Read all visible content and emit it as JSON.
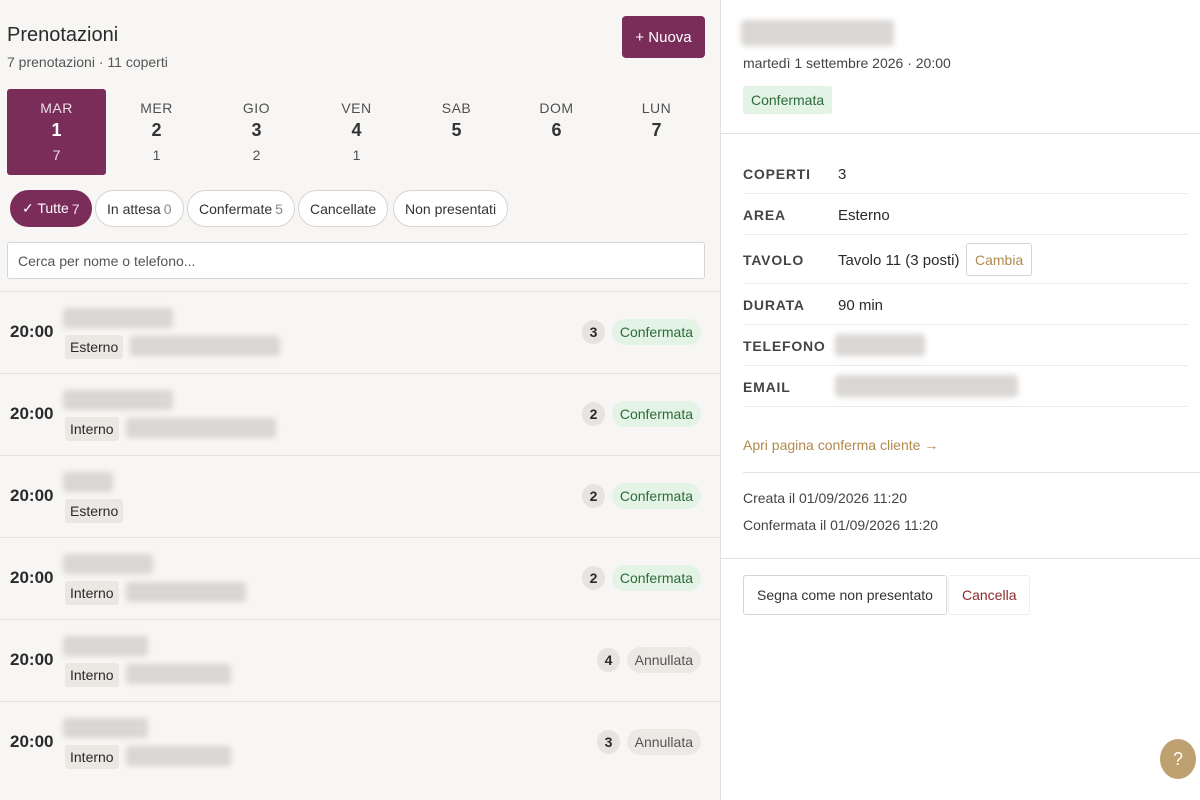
{
  "header": {
    "title": "Prenotazioni",
    "subtitle": "7 prenotazioni · 11 coperti",
    "new_button": "+ Nuova"
  },
  "days": [
    {
      "dow": "MAR",
      "day": 1,
      "count": 7,
      "selected": true
    },
    {
      "dow": "MER",
      "day": 2,
      "count": 1
    },
    {
      "dow": "GIO",
      "day": 3,
      "count": 2
    },
    {
      "dow": "VEN",
      "day": 4,
      "count": 1
    },
    {
      "dow": "SAB",
      "day": 5
    },
    {
      "dow": "DOM",
      "day": 6
    },
    {
      "dow": "LUN",
      "day": 7
    }
  ],
  "filters": [
    {
      "label": "✓ Tutte",
      "count": 7,
      "selected": true
    },
    {
      "label": "In attesa",
      "count": 0
    },
    {
      "label": "Confermate",
      "count": 5
    },
    {
      "label": "Cancellate"
    },
    {
      "label": "Non presentati"
    }
  ],
  "search": {
    "placeholder": "Cerca per nome o telefono..."
  },
  "reservations": [
    {
      "time": "20:00",
      "area": "Esterno",
      "covers": 3,
      "status": "Confermata"
    },
    {
      "time": "20:00",
      "area": "Interno",
      "covers": 2,
      "status": "Confermata"
    },
    {
      "time": "20:00",
      "area": "Esterno",
      "covers": 2,
      "status": "Confermata"
    },
    {
      "time": "20:00",
      "area": "Interno",
      "covers": 2,
      "status": "Confermata"
    },
    {
      "time": "20:00",
      "area": "Interno",
      "covers": 4,
      "status": "Annullata"
    },
    {
      "time": "20:00",
      "area": "Interno",
      "covers": 3,
      "status": "Annullata"
    }
  ],
  "detail": {
    "datetime": "martedì 1 settembre 2026 · 20:00",
    "status": "Confermata",
    "fields": [
      {
        "label": "COPERTI",
        "value": "3"
      },
      {
        "label": "AREA",
        "value": "Esterno"
      },
      {
        "label": "TAVOLO",
        "value": "Tavolo 11 (3 posti)",
        "action": "Cambia"
      },
      {
        "label": "DURATA",
        "value": "90 min"
      },
      {
        "label": "TELEFONO"
      },
      {
        "label": "EMAIL"
      }
    ],
    "link": "Apri pagina conferma cliente →",
    "created": "Creata il 01/09/2026 11:20",
    "confirmed": "Confermata il 01/09/2026 11:20",
    "actions": {
      "no_show": "Segna come non presentato",
      "cancel": "Cancella"
    }
  },
  "help": "?"
}
